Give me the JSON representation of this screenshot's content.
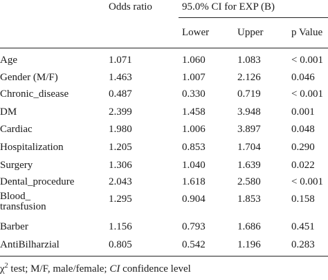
{
  "table": {
    "headers": {
      "odds_ratio": "Odds ratio",
      "ci": "95.0% CI for EXP (B)",
      "lower": "Lower",
      "upper": "Upper",
      "p_value": "p Value"
    },
    "rows": [
      {
        "name": "Age",
        "odds": "1.071",
        "lower": "1.060",
        "upper": "1.083",
        "p": "< 0.001"
      },
      {
        "name": "Gender (M/F)",
        "odds": "1.463",
        "lower": "1.007",
        "upper": "2.126",
        "p": "0.046"
      },
      {
        "name": "Chronic_disease",
        "odds": "0.487",
        "lower": "0.330",
        "upper": "0.719",
        "p": "< 0.001"
      },
      {
        "name": "DM",
        "odds": "2.399",
        "lower": "1.458",
        "upper": "3.948",
        "p": "0.001"
      },
      {
        "name": "Cardiac",
        "odds": "1.980",
        "lower": "1.006",
        "upper": "3.897",
        "p": "0.048"
      },
      {
        "name": "Hospitalization",
        "odds": "1.205",
        "lower": "0.853",
        "upper": "1.704",
        "p": "0.290"
      },
      {
        "name": "Surgery",
        "odds": "1.306",
        "lower": "1.040",
        "upper": "1.639",
        "p": "0.022"
      },
      {
        "name": "Dental_procedure",
        "odds": "2.043",
        "lower": "1.618",
        "upper": "2.580",
        "p": "< 0.001"
      },
      {
        "name": "Blood_ transfusion",
        "odds": "1.295",
        "lower": "0.904",
        "upper": "1.853",
        "p": "0.158"
      },
      {
        "name": "Barber",
        "odds": "1.156",
        "lower": "0.793",
        "upper": "1.686",
        "p": "0.451"
      },
      {
        "name": "AntiBilharzial",
        "odds": "0.805",
        "lower": "0.542",
        "upper": "1.196",
        "p": "0.283"
      }
    ]
  },
  "footnote": {
    "chi": "χ",
    "sup": "2",
    "text_a": " test; M/F, male/female; ",
    "ci_abbr": "CI",
    "text_b": " confidence level"
  }
}
